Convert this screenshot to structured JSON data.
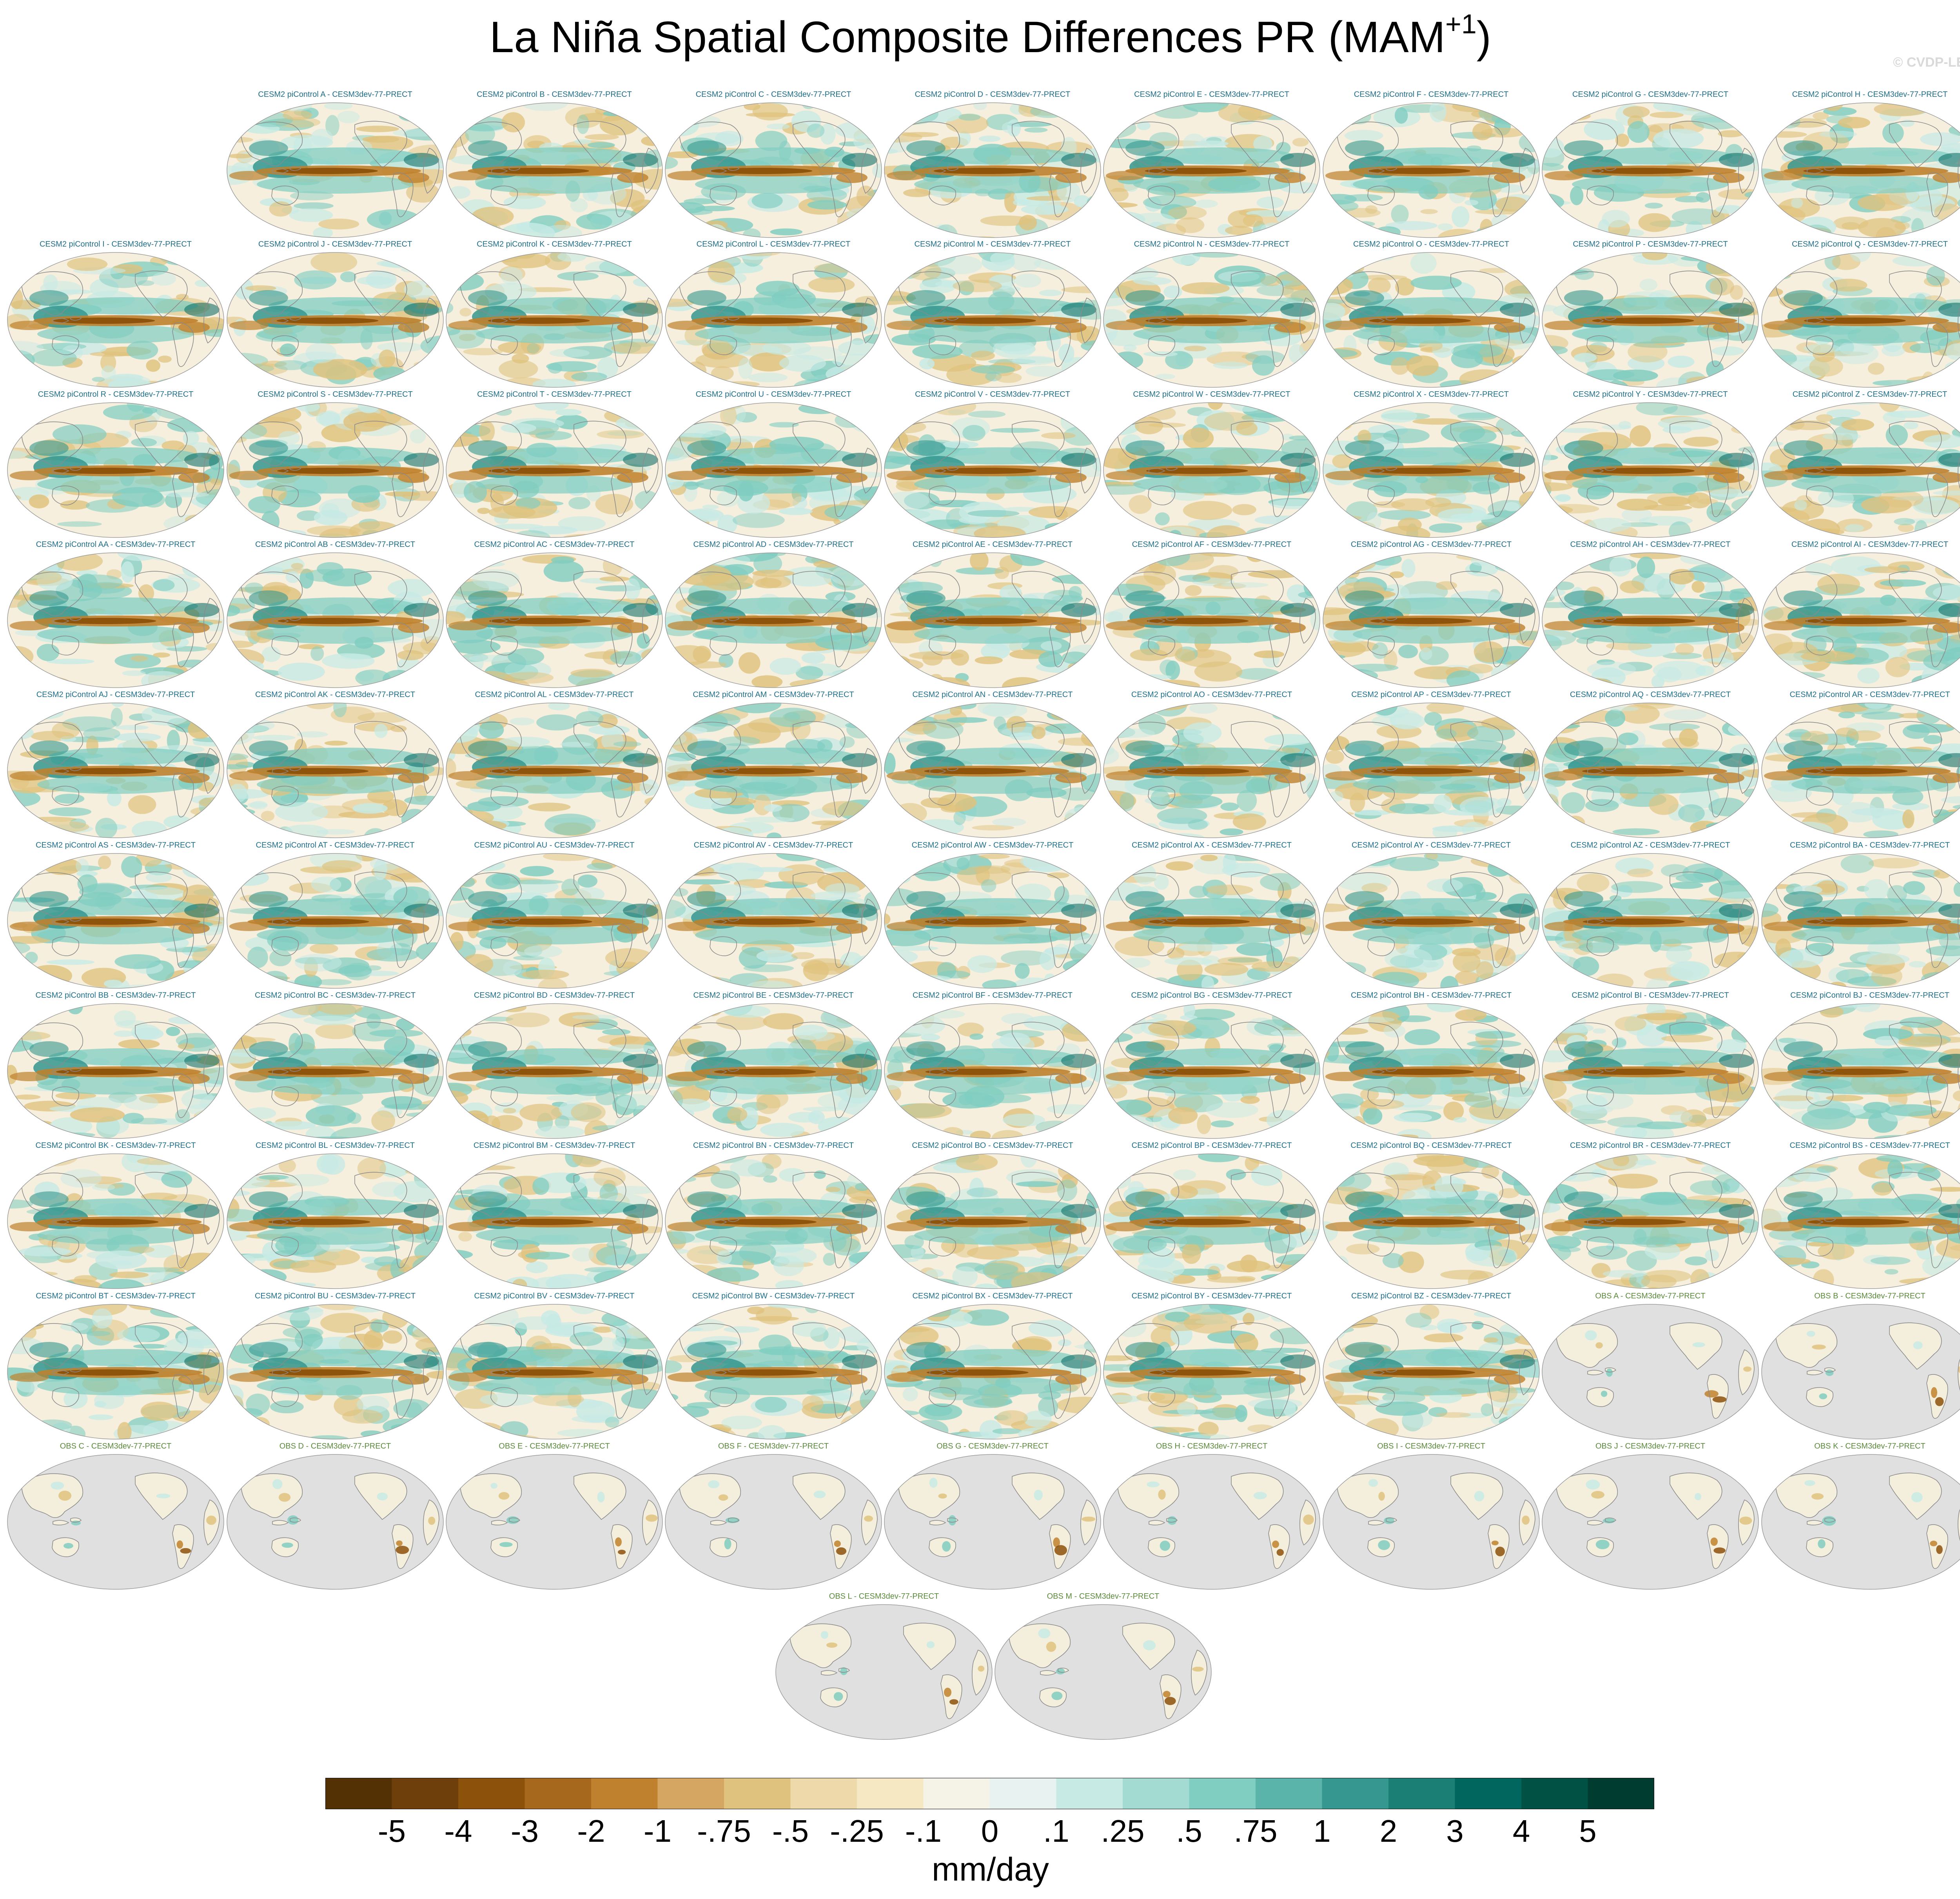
{
  "figure": {
    "title_main": "La Niña Spatial Composite Differences PR (MAM",
    "title_sup": "+1",
    "title_end": ")",
    "copyright": "© CVDP-LE"
  },
  "chart_data": {
    "type": "heatmap",
    "title": "La Niña Spatial Composite Differences PR (MAM+1)",
    "panels": [
      "CESM2 piControl A - CESM3dev-77-PRECT",
      "CESM2 piControl B - CESM3dev-77-PRECT",
      "CESM2 piControl C - CESM3dev-77-PRECT",
      "CESM2 piControl D - CESM3dev-77-PRECT",
      "CESM2 piControl E - CESM3dev-77-PRECT",
      "CESM2 piControl F - CESM3dev-77-PRECT",
      "CESM2 piControl G - CESM3dev-77-PRECT",
      "CESM2 piControl H - CESM3dev-77-PRECT",
      "CESM2 piControl I - CESM3dev-77-PRECT",
      "CESM2 piControl J - CESM3dev-77-PRECT",
      "CESM2 piControl K - CESM3dev-77-PRECT",
      "CESM2 piControl L - CESM3dev-77-PRECT",
      "CESM2 piControl M - CESM3dev-77-PRECT",
      "CESM2 piControl N - CESM3dev-77-PRECT",
      "CESM2 piControl O - CESM3dev-77-PRECT",
      "CESM2 piControl P - CESM3dev-77-PRECT",
      "CESM2 piControl Q - CESM3dev-77-PRECT",
      "CESM2 piControl R - CESM3dev-77-PRECT",
      "CESM2 piControl S - CESM3dev-77-PRECT",
      "CESM2 piControl T - CESM3dev-77-PRECT",
      "CESM2 piControl U - CESM3dev-77-PRECT",
      "CESM2 piControl V - CESM3dev-77-PRECT",
      "CESM2 piControl W - CESM3dev-77-PRECT",
      "CESM2 piControl X - CESM3dev-77-PRECT",
      "CESM2 piControl Y - CESM3dev-77-PRECT",
      "CESM2 piControl Z - CESM3dev-77-PRECT",
      "CESM2 piControl AA - CESM3dev-77-PRECT",
      "CESM2 piControl AB - CESM3dev-77-PRECT",
      "CESM2 piControl AC - CESM3dev-77-PRECT",
      "CESM2 piControl AD - CESM3dev-77-PRECT",
      "CESM2 piControl AE - CESM3dev-77-PRECT",
      "CESM2 piControl AF - CESM3dev-77-PRECT",
      "CESM2 piControl AG - CESM3dev-77-PRECT",
      "CESM2 piControl AH - CESM3dev-77-PRECT",
      "CESM2 piControl AI - CESM3dev-77-PRECT",
      "CESM2 piControl AJ - CESM3dev-77-PRECT",
      "CESM2 piControl AK - CESM3dev-77-PRECT",
      "CESM2 piControl AL - CESM3dev-77-PRECT",
      "CESM2 piControl AM - CESM3dev-77-PRECT",
      "CESM2 piControl AN - CESM3dev-77-PRECT",
      "CESM2 piControl AO - CESM3dev-77-PRECT",
      "CESM2 piControl AP - CESM3dev-77-PRECT",
      "CESM2 piControl AQ - CESM3dev-77-PRECT",
      "CESM2 piControl AR - CESM3dev-77-PRECT",
      "CESM2 piControl AS - CESM3dev-77-PRECT",
      "CESM2 piControl AT - CESM3dev-77-PRECT",
      "CESM2 piControl AU - CESM3dev-77-PRECT",
      "CESM2 piControl AV - CESM3dev-77-PRECT",
      "CESM2 piControl AW - CESM3dev-77-PRECT",
      "CESM2 piControl AX - CESM3dev-77-PRECT",
      "CESM2 piControl AY - CESM3dev-77-PRECT",
      "CESM2 piControl AZ - CESM3dev-77-PRECT",
      "CESM2 piControl BA - CESM3dev-77-PRECT",
      "CESM2 piControl BB - CESM3dev-77-PRECT",
      "CESM2 piControl BC - CESM3dev-77-PRECT",
      "CESM2 piControl BD - CESM3dev-77-PRECT",
      "CESM2 piControl BE - CESM3dev-77-PRECT",
      "CESM2 piControl BF - CESM3dev-77-PRECT",
      "CESM2 piControl BG - CESM3dev-77-PRECT",
      "CESM2 piControl BH - CESM3dev-77-PRECT",
      "CESM2 piControl BI - CESM3dev-77-PRECT",
      "CESM2 piControl BJ - CESM3dev-77-PRECT",
      "CESM2 piControl BK - CESM3dev-77-PRECT",
      "CESM2 piControl BL - CESM3dev-77-PRECT",
      "CESM2 piControl BM - CESM3dev-77-PRECT",
      "CESM2 piControl BN - CESM3dev-77-PRECT",
      "CESM2 piControl BO - CESM3dev-77-PRECT",
      "CESM2 piControl BP - CESM3dev-77-PRECT",
      "CESM2 piControl BQ - CESM3dev-77-PRECT",
      "CESM2 piControl BR - CESM3dev-77-PRECT",
      "CESM2 piControl BS - CESM3dev-77-PRECT",
      "CESM2 piControl BT - CESM3dev-77-PRECT",
      "CESM2 piControl BU - CESM3dev-77-PRECT",
      "CESM2 piControl BV - CESM3dev-77-PRECT",
      "CESM2 piControl BW - CESM3dev-77-PRECT",
      "CESM2 piControl BX - CESM3dev-77-PRECT",
      "CESM2 piControl BY - CESM3dev-77-PRECT",
      "CESM2 piControl BZ - CESM3dev-77-PRECT",
      "OBS A - CESM3dev-77-PRECT",
      "OBS B - CESM3dev-77-PRECT",
      "OBS C - CESM3dev-77-PRECT",
      "OBS D - CESM3dev-77-PRECT",
      "OBS E - CESM3dev-77-PRECT",
      "OBS F - CESM3dev-77-PRECT",
      "OBS G - CESM3dev-77-PRECT",
      "OBS H - CESM3dev-77-PRECT",
      "OBS I - CESM3dev-77-PRECT",
      "OBS J - CESM3dev-77-PRECT",
      "OBS K - CESM3dev-77-PRECT",
      "OBS L - CESM3dev-77-PRECT",
      "OBS M - CESM3dev-77-PRECT"
    ],
    "colorbar": {
      "units": "mm/day",
      "tick_labels": [
        "-5",
        "-4",
        "-3",
        "-2",
        "-1",
        "-.75",
        "-.5",
        "-.25",
        "-.1",
        "0",
        ".1",
        ".25",
        ".5",
        ".75",
        "1",
        "2",
        "3",
        "4",
        "5"
      ],
      "colors": [
        "#543005",
        "#6f3f0b",
        "#8c510a",
        "#a6681c",
        "#bf812d",
        "#d4a661",
        "#dfc27d",
        "#edd9a9",
        "#f6e8c3",
        "#f5f2e8",
        "#e8f2f0",
        "#c7eae5",
        "#a3dbd2",
        "#80cdc1",
        "#5ab4a9",
        "#35978f",
        "#1c7f76",
        "#01665e",
        "#015245",
        "#003c30"
      ]
    },
    "map_palette": {
      "land_mask": "#e0e0e0",
      "coast": "#8a8a8a",
      "ocean_bg": "#f6efdd",
      "dry_strong": "#8c510a",
      "dry_mid": "#bf812d",
      "dry_light": "#dfc27d",
      "wet_light": "#c7eae5",
      "wet_mid": "#80cdc1",
      "wet_strong": "#35978f",
      "wet_deep": "#01665e"
    }
  }
}
